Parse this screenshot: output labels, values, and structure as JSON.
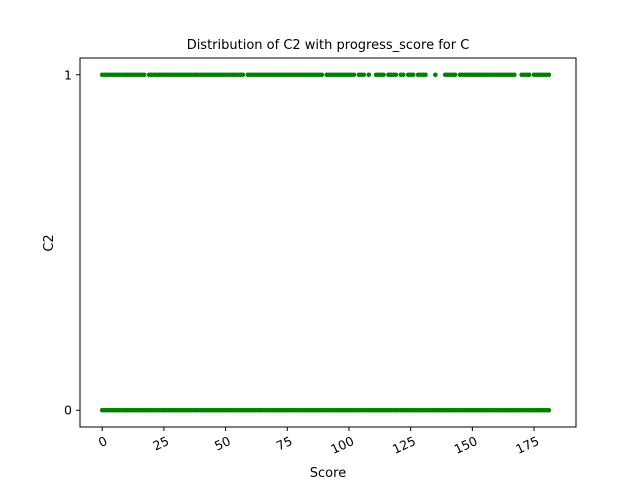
{
  "chart_data": {
    "type": "scatter",
    "title": "Distribution of C2 with progress_score for C",
    "xlabel": "Score",
    "ylabel": "C2",
    "xlim": [
      -9,
      192
    ],
    "ylim": [
      -0.05,
      1.05
    ],
    "xticks": [
      "0",
      "25",
      "50",
      "75",
      "100",
      "125",
      "150",
      "175"
    ],
    "xtick_values": [
      0,
      25,
      50,
      75,
      100,
      125,
      150,
      175
    ],
    "yticks": [
      "0",
      "1"
    ],
    "ytick_values": [
      0,
      1
    ],
    "grid": false,
    "legend": "none",
    "marker_color": "#008000",
    "series": [
      {
        "points_y1": [
          0,
          1,
          2,
          3,
          4,
          5,
          6,
          7,
          8,
          9,
          10,
          11,
          12,
          13,
          14,
          15,
          16,
          17,
          19,
          20,
          21,
          22,
          23,
          24,
          25,
          26,
          27,
          28,
          29,
          30,
          31,
          32,
          33,
          34,
          35,
          36,
          37,
          38,
          39,
          40,
          41,
          42,
          43,
          44,
          45,
          46,
          47,
          48,
          49,
          50,
          51,
          52,
          53,
          54,
          55,
          56,
          57,
          59,
          60,
          61,
          62,
          63,
          64,
          65,
          66,
          67,
          68,
          69,
          70,
          71,
          72,
          73,
          74,
          75,
          76,
          77,
          78,
          79,
          80,
          81,
          82,
          83,
          84,
          85,
          86,
          87,
          88,
          89,
          91,
          92,
          93,
          94,
          95,
          96,
          97,
          98,
          99,
          100,
          101,
          102,
          104,
          105,
          106,
          108,
          111,
          112,
          113,
          114,
          116,
          117,
          118,
          119,
          121,
          122,
          124,
          125,
          126,
          128,
          129,
          130,
          131,
          135,
          139,
          140,
          141,
          142,
          143,
          145,
          146,
          147,
          148,
          149,
          150,
          151,
          152,
          153,
          154,
          155,
          156,
          157,
          158,
          159,
          160,
          161,
          162,
          163,
          164,
          165,
          166,
          167,
          170,
          171,
          172,
          173,
          175,
          176,
          177,
          178,
          179,
          180,
          181
        ],
        "points_y0_range": [
          0,
          181
        ],
        "points_y0_step": 1
      }
    ]
  }
}
